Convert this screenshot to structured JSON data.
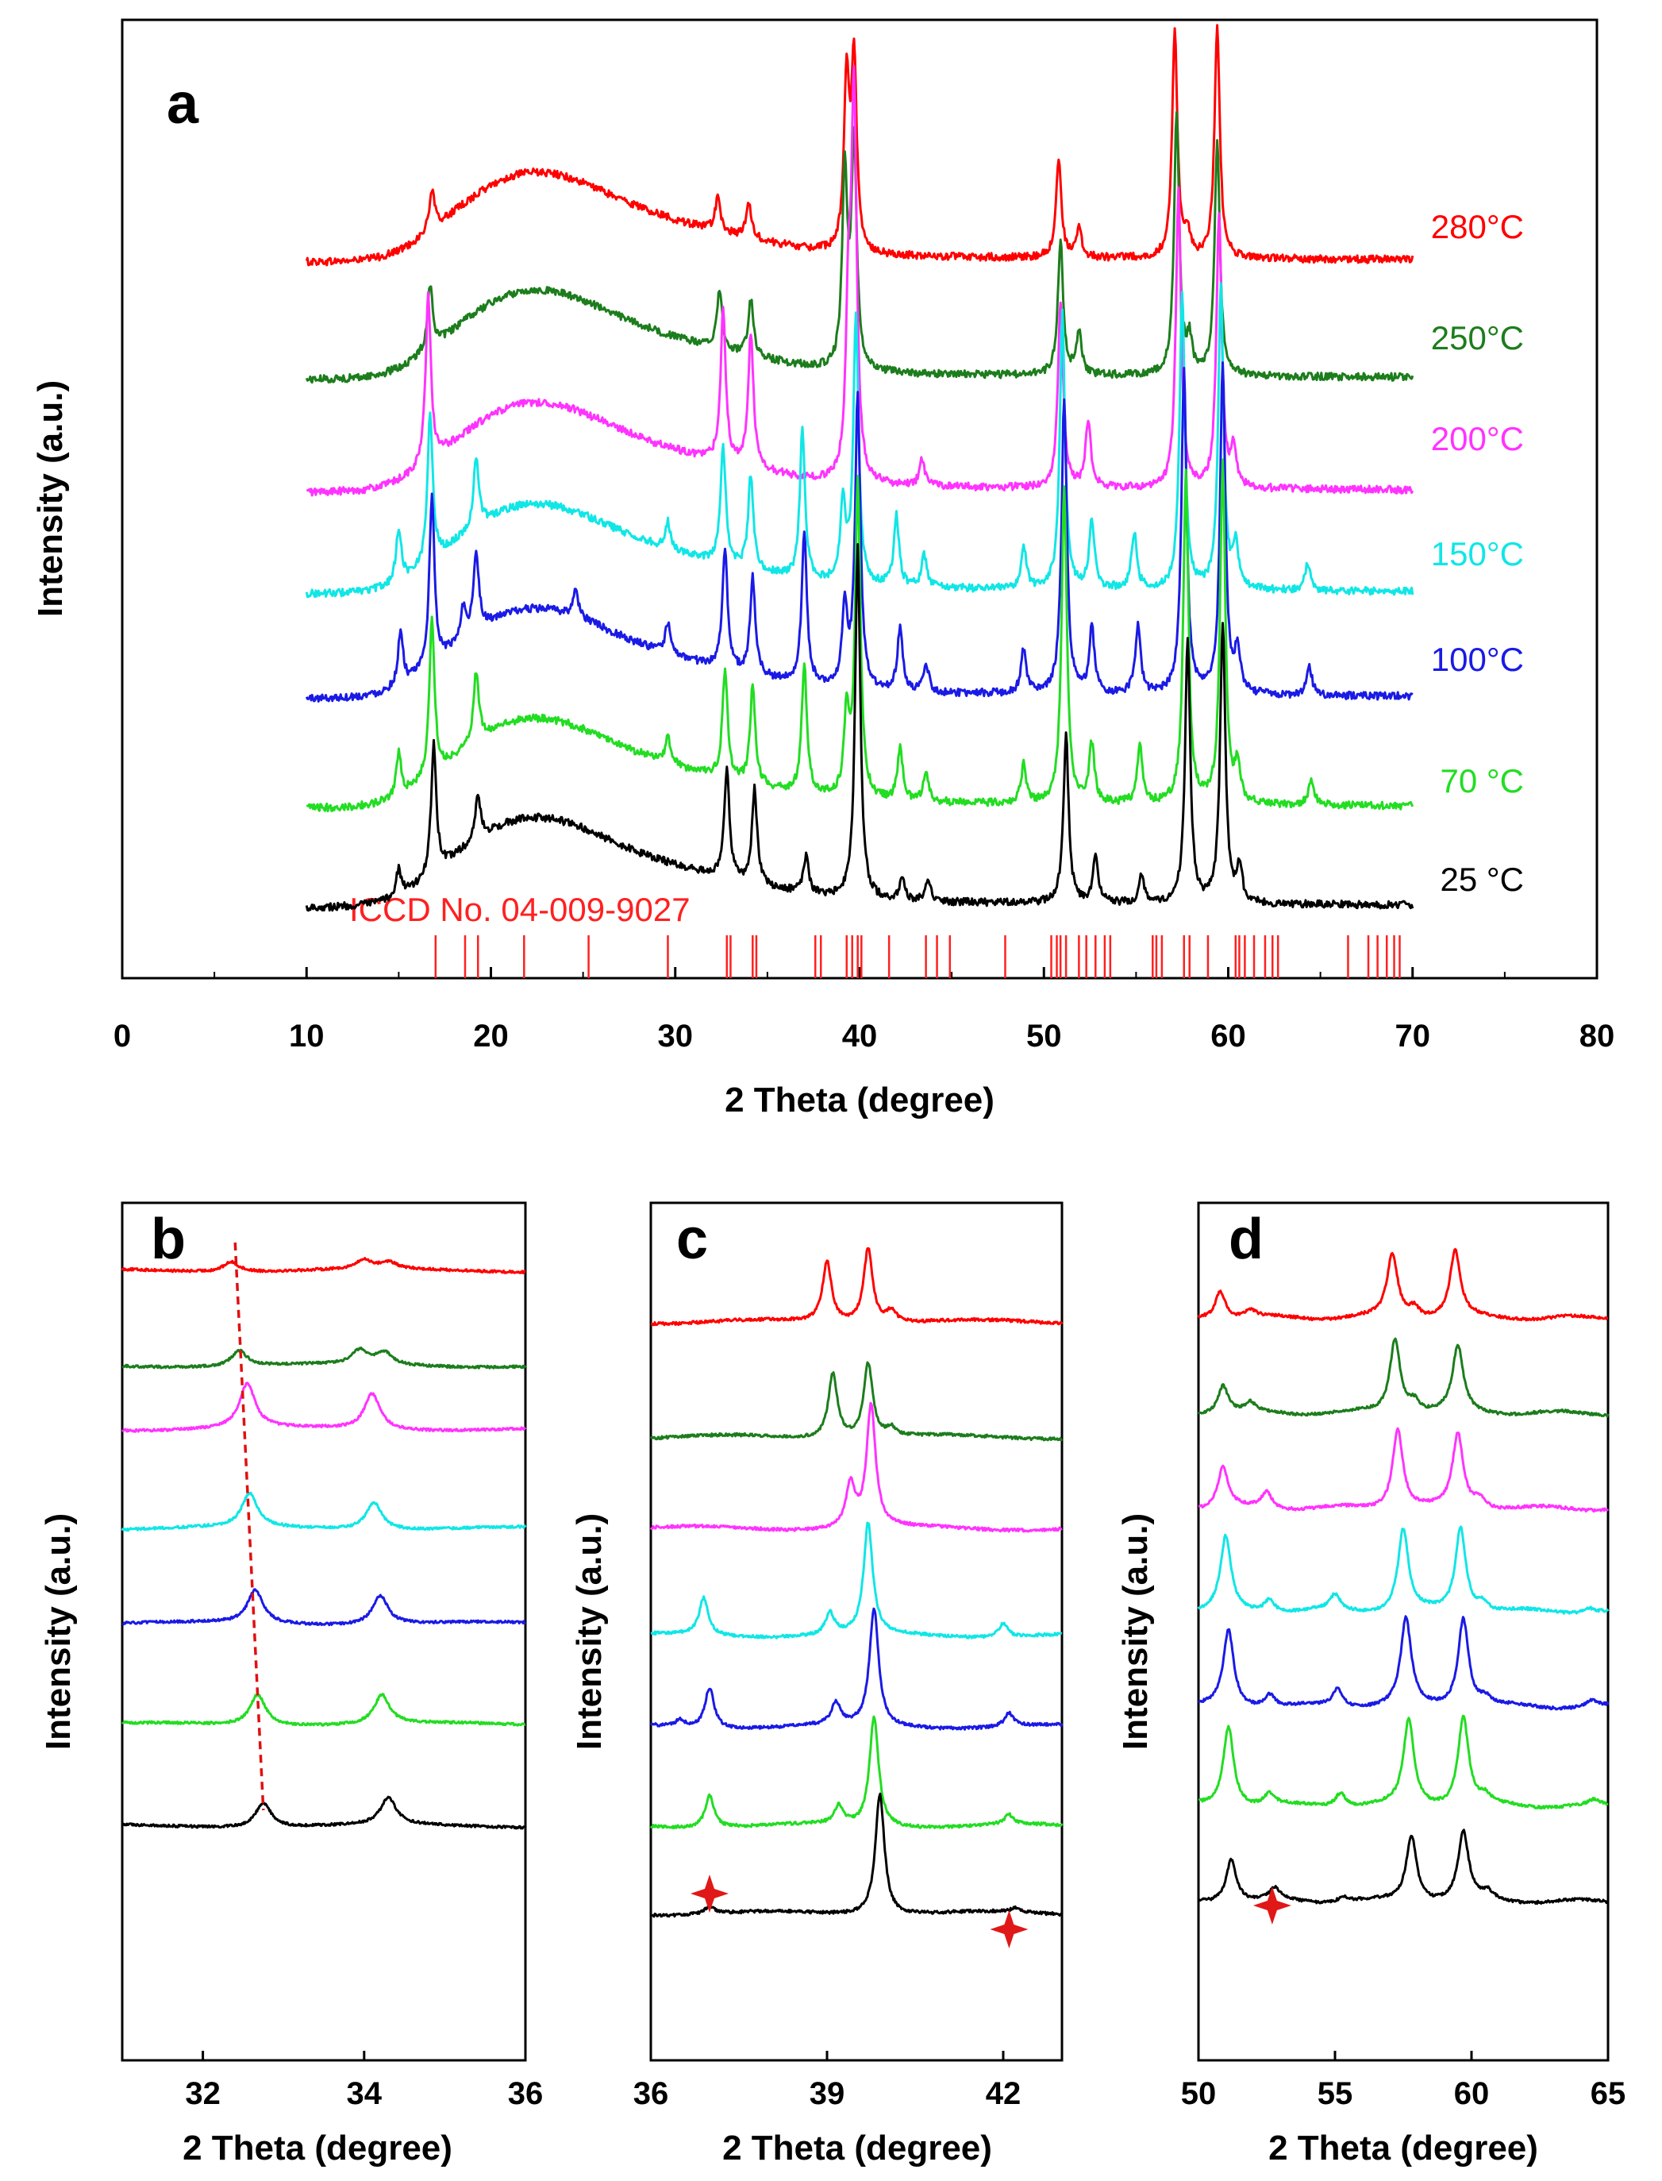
{
  "colors": {
    "280": "#ff0000",
    "250": "#1c7d1c",
    "200": "#ff33ff",
    "150": "#11e6e6",
    "100": "#1a1ae6",
    "70": "#22dd22",
    "25": "#000000",
    "ref": "#ff2020",
    "star": "#e01818",
    "guide": "#e01010"
  },
  "chart_data": [
    {
      "panel": "a",
      "type": "line",
      "xlabel": "2 Theta (degree)",
      "ylabel": "Intensity (a.u.)",
      "xlim": [
        0,
        80
      ],
      "xticks": [
        0,
        10,
        20,
        30,
        40,
        50,
        60,
        70,
        80
      ],
      "reference_label": "ICCD No. 04-009-9027",
      "reference_lines": [
        17.0,
        18.6,
        19.3,
        21.8,
        25.3,
        29.6,
        32.8,
        33.0,
        34.2,
        34.4,
        37.6,
        37.9,
        39.3,
        39.6,
        39.9,
        40.1,
        41.6,
        43.6,
        44.2,
        44.9,
        47.9,
        50.4,
        50.7,
        50.9,
        51.2,
        51.9,
        52.3,
        52.8,
        53.3,
        53.6,
        55.9,
        56.1,
        56.4,
        57.6,
        57.9,
        58.9,
        60.4,
        60.6,
        60.9,
        61.4,
        62.0,
        62.4,
        62.7,
        66.5,
        67.6,
        68.1,
        68.6,
        69.0,
        69.3
      ],
      "series": [
        {
          "name": "280°C",
          "label": "280°C",
          "color_key": "280",
          "x_range": [
            10,
            70
          ],
          "peaks": [
            [
              16.8,
              1.5
            ],
            [
              32.3,
              1.2
            ],
            [
              34.0,
              1.3
            ],
            [
              39.3,
              6.4
            ],
            [
              39.7,
              7.0
            ],
            [
              50.8,
              3.7
            ],
            [
              51.9,
              1.1
            ],
            [
              57.1,
              8.4
            ],
            [
              57.8,
              0.8
            ],
            [
              59.4,
              8.6
            ]
          ]
        },
        {
          "name": "250°C",
          "label": "250°C",
          "color_key": "250",
          "x_range": [
            10,
            70
          ],
          "peaks": [
            [
              16.7,
              2.4
            ],
            [
              32.4,
              2.2
            ],
            [
              34.1,
              2.1
            ],
            [
              39.2,
              7.2
            ],
            [
              39.7,
              8.3
            ],
            [
              50.9,
              5.0
            ],
            [
              51.9,
              1.6
            ],
            [
              57.2,
              9.6
            ],
            [
              57.9,
              1.2
            ],
            [
              59.4,
              8.7
            ]
          ]
        },
        {
          "name": "200°C",
          "label": "200°C",
          "color_key": "200",
          "x_range": [
            10,
            70
          ],
          "peaks": [
            [
              16.6,
              6.2
            ],
            [
              32.6,
              5.6
            ],
            [
              34.1,
              5.0
            ],
            [
              39.4,
              6.0
            ],
            [
              39.7,
              14.0
            ],
            [
              43.4,
              1.0
            ],
            [
              50.9,
              6.9
            ],
            [
              52.4,
              2.5
            ],
            [
              57.3,
              11.0
            ],
            [
              59.5,
              10.2
            ],
            [
              60.3,
              1.4
            ]
          ]
        },
        {
          "name": "150°C",
          "label": "150°C",
          "color_key": "150",
          "x_range": [
            10,
            70
          ],
          "peaks": [
            [
              15.0,
              2.0
            ],
            [
              16.7,
              5.6
            ],
            [
              19.2,
              2.6
            ],
            [
              29.6,
              1.0
            ],
            [
              32.6,
              4.3
            ],
            [
              34.1,
              3.5
            ],
            [
              36.9,
              5.5
            ],
            [
              39.1,
              3.0
            ],
            [
              39.8,
              9.8
            ],
            [
              42.0,
              2.6
            ],
            [
              43.5,
              1.2
            ],
            [
              48.9,
              1.6
            ],
            [
              51.0,
              10.2
            ],
            [
              52.6,
              2.5
            ],
            [
              54.9,
              2.1
            ],
            [
              57.5,
              11.0
            ],
            [
              59.6,
              11.3
            ],
            [
              60.4,
              1.6
            ],
            [
              64.3,
              1.0
            ]
          ]
        },
        {
          "name": "100°C",
          "label": "100°C",
          "color_key": "100",
          "x_range": [
            10,
            70
          ],
          "peaks": [
            [
              15.1,
              2.0
            ],
            [
              16.8,
              6.2
            ],
            [
              18.5,
              1.2
            ],
            [
              19.2,
              3.0
            ],
            [
              24.6,
              1.0
            ],
            [
              29.6,
              1.1
            ],
            [
              32.7,
              4.4
            ],
            [
              34.2,
              3.6
            ],
            [
              37.0,
              5.6
            ],
            [
              39.2,
              3.0
            ],
            [
              39.9,
              10.9
            ],
            [
              42.2,
              2.4
            ],
            [
              43.6,
              1.1
            ],
            [
              48.9,
              1.6
            ],
            [
              51.1,
              11.0
            ],
            [
              52.6,
              2.4
            ],
            [
              55.1,
              2.5
            ],
            [
              57.6,
              11.9
            ],
            [
              59.7,
              12.2
            ],
            [
              60.5,
              1.6
            ],
            [
              64.4,
              1.1
            ]
          ]
        },
        {
          "name": "70 °C",
          "label": "70 °C",
          "color_key": "70",
          "x_range": [
            10,
            70
          ],
          "peaks": [
            [
              15.0,
              1.6
            ],
            [
              16.8,
              5.8
            ],
            [
              19.2,
              2.6
            ],
            [
              29.6,
              1.0
            ],
            [
              32.7,
              4.0
            ],
            [
              34.2,
              3.6
            ],
            [
              37.0,
              4.8
            ],
            [
              39.3,
              3.0
            ],
            [
              39.9,
              11.7
            ],
            [
              42.2,
              2.0
            ],
            [
              43.6,
              1.1
            ],
            [
              48.9,
              1.4
            ],
            [
              51.1,
              11.7
            ],
            [
              52.6,
              2.2
            ],
            [
              55.2,
              2.1
            ],
            [
              57.7,
              12.2
            ],
            [
              59.7,
              12.7
            ],
            [
              60.5,
              1.4
            ],
            [
              64.5,
              1.0
            ]
          ]
        },
        {
          "name": "25 °C",
          "label": "25 °C",
          "color_key": "25",
          "x_range": [
            10,
            70
          ],
          "peaks": [
            [
              15.0,
              1.0
            ],
            [
              16.9,
              4.8
            ],
            [
              19.3,
              1.6
            ],
            [
              32.8,
              4.0
            ],
            [
              34.3,
              3.5
            ],
            [
              37.1,
              1.4
            ],
            [
              39.9,
              13.0
            ],
            [
              42.3,
              0.8
            ],
            [
              43.7,
              0.8
            ],
            [
              51.2,
              6.2
            ],
            [
              52.8,
              1.8
            ],
            [
              55.3,
              1.0
            ],
            [
              57.8,
              9.7
            ],
            [
              59.7,
              10.4
            ],
            [
              60.6,
              1.4
            ]
          ]
        }
      ]
    },
    {
      "panel": "b",
      "type": "line",
      "xlabel": "2 Theta (degree)",
      "ylabel": "Intensity (a.u.)",
      "xlim": [
        31,
        36
      ],
      "xticks": [
        32,
        34,
        36
      ],
      "guide_line": {
        "from": [
          32.4,
          280
        ],
        "to": [
          32.75,
          25
        ]
      },
      "series": [
        {
          "name": "280°C",
          "color_key": "280",
          "peaks": [
            [
              32.35,
              0.9
            ],
            [
              34.0,
              0.8
            ],
            [
              34.3,
              0.6
            ]
          ]
        },
        {
          "name": "250°C",
          "color_key": "250",
          "peaks": [
            [
              32.45,
              1.4
            ],
            [
              33.95,
              1.3
            ],
            [
              34.25,
              1.1
            ]
          ]
        },
        {
          "name": "200°C",
          "color_key": "200",
          "peaks": [
            [
              32.55,
              4.0
            ],
            [
              34.1,
              3.2
            ]
          ]
        },
        {
          "name": "150°C",
          "color_key": "150",
          "peaks": [
            [
              32.58,
              3.0
            ],
            [
              34.12,
              2.5
            ]
          ]
        },
        {
          "name": "100°C",
          "color_key": "100",
          "peaks": [
            [
              32.65,
              3.0
            ],
            [
              34.2,
              2.6
            ]
          ]
        },
        {
          "name": "70 °C",
          "color_key": "70",
          "peaks": [
            [
              32.68,
              2.8
            ],
            [
              34.22,
              2.6
            ]
          ]
        },
        {
          "name": "25 °C",
          "color_key": "25",
          "peaks": [
            [
              32.75,
              2.2
            ],
            [
              34.3,
              2.4
            ]
          ]
        }
      ]
    },
    {
      "panel": "c",
      "type": "line",
      "xlabel": "2 Theta (degree)",
      "ylabel": "Intensity (a.u.)",
      "xlim": [
        36,
        43
      ],
      "xticks": [
        36,
        39,
        42
      ],
      "markers": [
        37.0,
        42.1
      ],
      "series": [
        {
          "name": "280°C",
          "color_key": "280",
          "peaks": [
            [
              39.0,
              4.5
            ],
            [
              39.7,
              5.5
            ],
            [
              40.1,
              0.9
            ]
          ]
        },
        {
          "name": "250°C",
          "color_key": "250",
          "peaks": [
            [
              39.1,
              4.8
            ],
            [
              39.7,
              5.5
            ],
            [
              40.1,
              0.6
            ]
          ]
        },
        {
          "name": "200°C",
          "color_key": "200",
          "peaks": [
            [
              39.4,
              3.2
            ],
            [
              39.75,
              9.0
            ]
          ]
        },
        {
          "name": "150°C",
          "color_key": "150",
          "peaks": [
            [
              36.9,
              2.8
            ],
            [
              39.05,
              1.6
            ],
            [
              39.7,
              8.2
            ],
            [
              42.0,
              1.0
            ]
          ]
        },
        {
          "name": "100°C",
          "color_key": "100",
          "peaks": [
            [
              36.5,
              0.5
            ],
            [
              37.0,
              3.0
            ],
            [
              39.15,
              1.6
            ],
            [
              39.8,
              8.7
            ],
            [
              42.1,
              1.0
            ]
          ]
        },
        {
          "name": "70 °C",
          "color_key": "70",
          "peaks": [
            [
              37.0,
              2.4
            ],
            [
              39.2,
              1.4
            ],
            [
              39.8,
              8.1
            ],
            [
              42.1,
              0.7
            ]
          ]
        },
        {
          "name": "25 °C",
          "color_key": "25",
          "peaks": [
            [
              37.0,
              0.6
            ],
            [
              39.9,
              9.0
            ],
            [
              42.2,
              0.3
            ]
          ]
        }
      ]
    },
    {
      "panel": "d",
      "type": "line",
      "xlabel": "2 Theta (degree)",
      "ylabel": "Intensity (a.u.)",
      "xlim": [
        50,
        65
      ],
      "xticks": [
        50,
        55,
        60,
        65
      ],
      "markers": [
        52.7
      ],
      "series": [
        {
          "name": "280°C",
          "color_key": "280",
          "peaks": [
            [
              50.8,
              2.2
            ],
            [
              51.9,
              0.6
            ],
            [
              57.1,
              5.0
            ],
            [
              57.9,
              0.8
            ],
            [
              59.4,
              5.2
            ]
          ]
        },
        {
          "name": "250°C",
          "color_key": "250",
          "peaks": [
            [
              50.9,
              2.2
            ],
            [
              51.9,
              0.7
            ],
            [
              57.2,
              5.8
            ],
            [
              57.9,
              0.9
            ],
            [
              59.5,
              5.2
            ]
          ]
        },
        {
          "name": "200°C",
          "color_key": "200",
          "peaks": [
            [
              50.9,
              3.2
            ],
            [
              52.5,
              1.3
            ],
            [
              57.3,
              6.3
            ],
            [
              59.5,
              5.8
            ],
            [
              60.3,
              0.8
            ]
          ]
        },
        {
          "name": "150°C",
          "color_key": "150",
          "peaks": [
            [
              51.0,
              5.8
            ],
            [
              52.6,
              1.0
            ],
            [
              55.0,
              1.2
            ],
            [
              57.5,
              6.4
            ],
            [
              59.6,
              6.6
            ],
            [
              60.4,
              0.7
            ],
            [
              64.3,
              0.4
            ]
          ]
        },
        {
          "name": "100°C",
          "color_key": "100",
          "peaks": [
            [
              51.1,
              6.0
            ],
            [
              52.6,
              1.0
            ],
            [
              55.1,
              1.4
            ],
            [
              57.6,
              6.8
            ],
            [
              59.7,
              7.0
            ],
            [
              60.5,
              0.6
            ],
            [
              64.4,
              0.5
            ]
          ]
        },
        {
          "name": "70 °C",
          "color_key": "70",
          "peaks": [
            [
              51.1,
              6.3
            ],
            [
              52.6,
              0.9
            ],
            [
              55.2,
              1.1
            ],
            [
              57.7,
              6.7
            ],
            [
              59.7,
              7.0
            ],
            [
              60.5,
              0.6
            ],
            [
              64.5,
              0.4
            ]
          ]
        },
        {
          "name": "25 °C",
          "color_key": "25",
          "peaks": [
            [
              51.2,
              3.4
            ],
            [
              52.8,
              0.9
            ],
            [
              55.3,
              0.4
            ],
            [
              57.8,
              5.2
            ],
            [
              59.7,
              5.4
            ],
            [
              60.6,
              0.6
            ]
          ]
        }
      ]
    }
  ],
  "panels": {
    "a": {
      "letter": "a"
    },
    "b": {
      "letter": "b"
    },
    "c": {
      "letter": "c"
    },
    "d": {
      "letter": "d"
    }
  }
}
